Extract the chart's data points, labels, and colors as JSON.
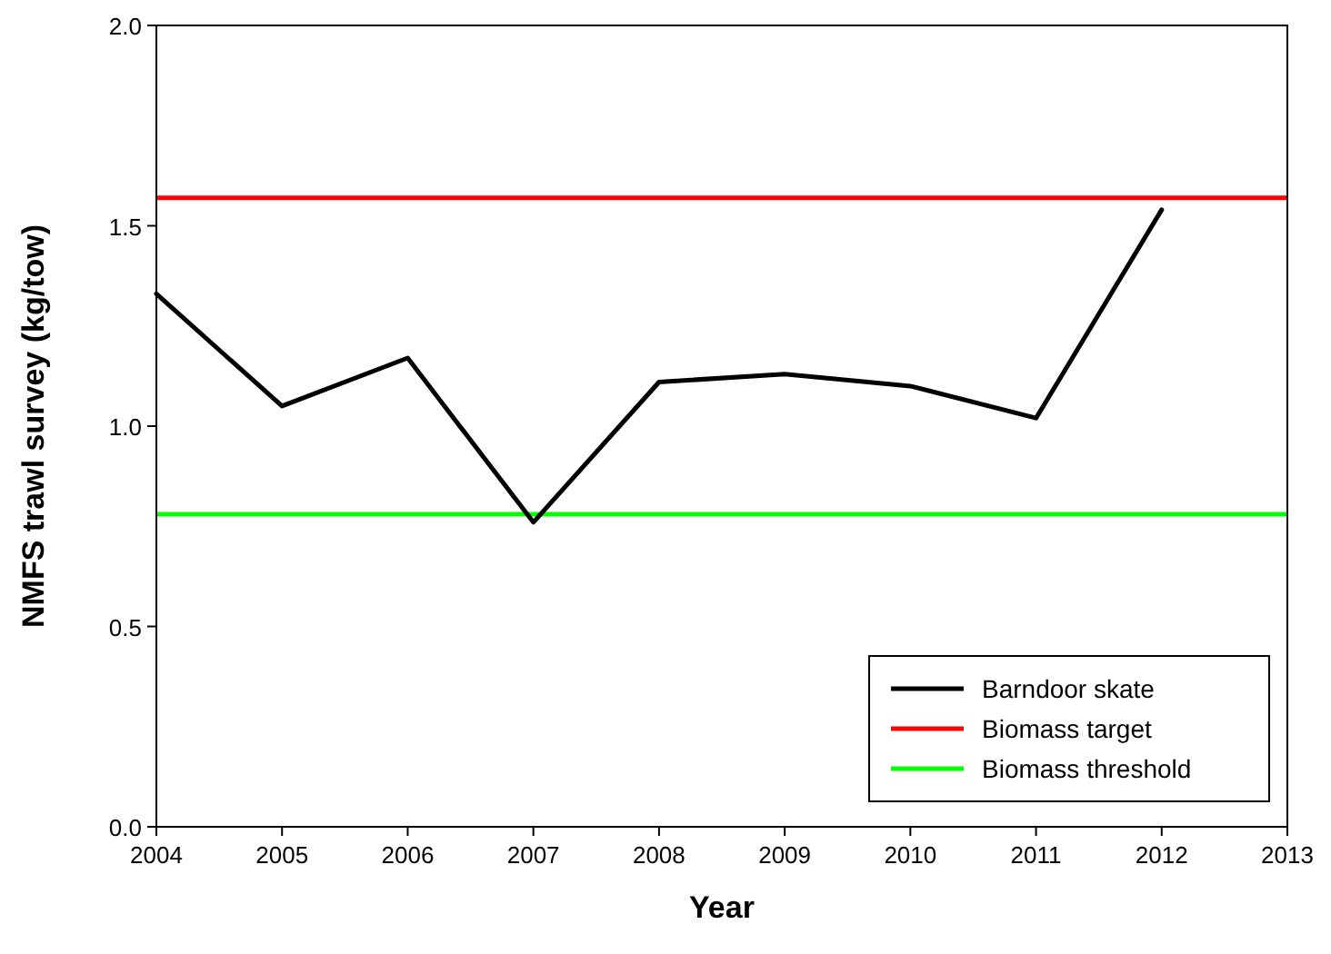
{
  "chart_data": {
    "type": "line",
    "xlabel": "Year",
    "ylabel": "NMFS trawl survey (kg/tow)",
    "x": [
      2004,
      2005,
      2006,
      2007,
      2008,
      2009,
      2010,
      2011,
      2012
    ],
    "series": [
      {
        "name": "Barndoor skate",
        "color": "#000000",
        "values": [
          1.33,
          1.05,
          1.17,
          0.76,
          1.11,
          1.13,
          1.1,
          1.02,
          1.54
        ]
      }
    ],
    "ref_lines": [
      {
        "axis": "y",
        "value": 1.57,
        "label": "Biomass target",
        "color": "#ff0000"
      },
      {
        "axis": "y",
        "value": 0.78,
        "label": "Biomass threshold",
        "color": "#00ff00"
      }
    ],
    "xlim": [
      2004,
      2013
    ],
    "xticks": [
      2004,
      2005,
      2006,
      2007,
      2008,
      2009,
      2010,
      2011,
      2012,
      2013
    ],
    "ylim": [
      0,
      2
    ],
    "yticks": [
      {
        "value": 0,
        "label": "0.0"
      },
      {
        "value": 0.5,
        "label": "0.5"
      },
      {
        "value": 1,
        "label": "1.0"
      },
      {
        "value": 1.5,
        "label": "1.5"
      },
      {
        "value": 2,
        "label": "2.0"
      }
    ],
    "legend": "bottom right",
    "marker": "none",
    "line_style": "solid"
  }
}
